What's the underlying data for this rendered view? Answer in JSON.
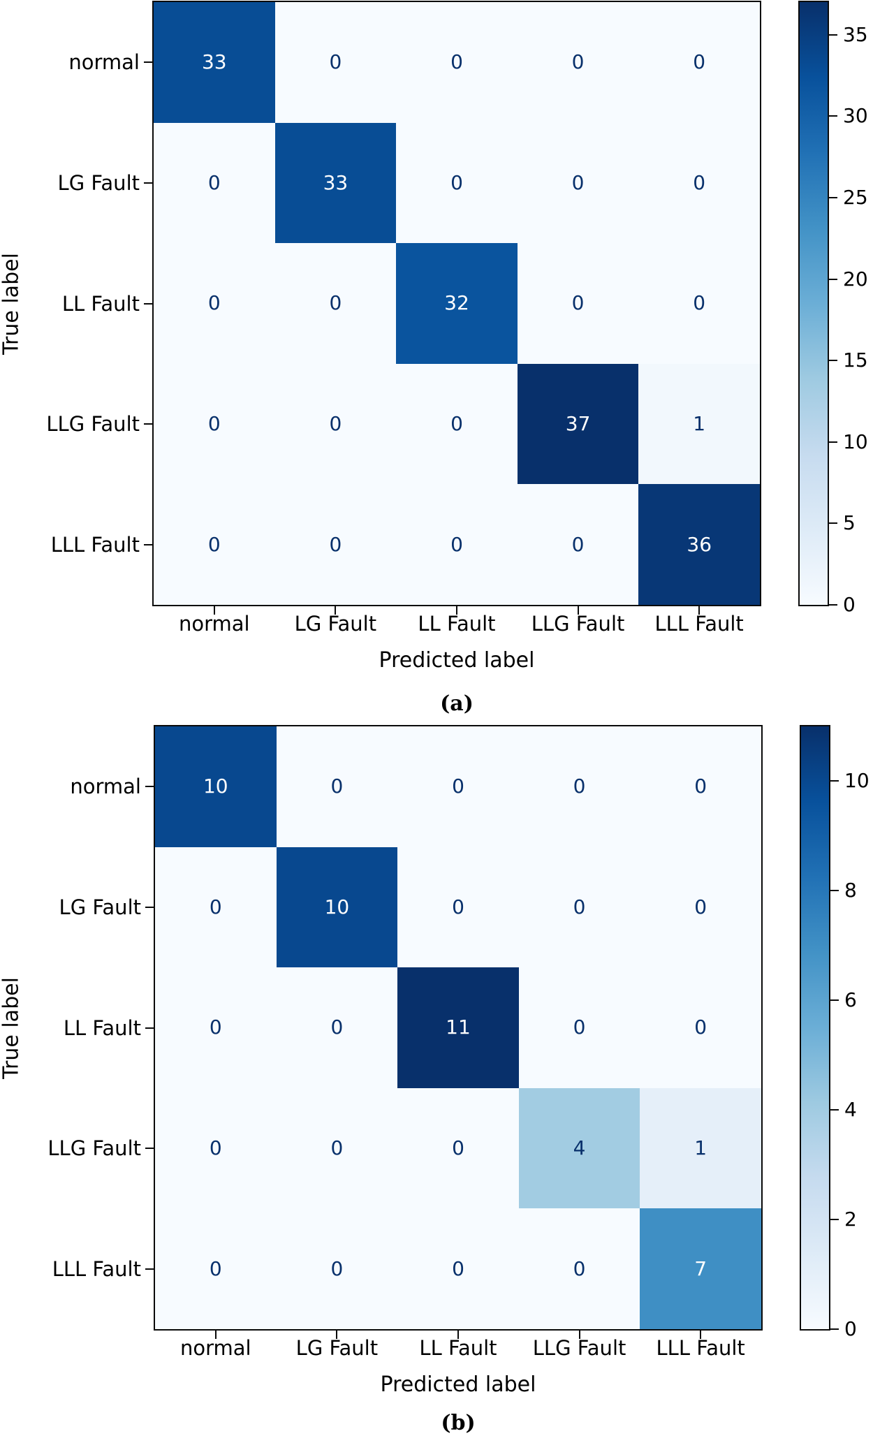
{
  "chart_data": [
    {
      "type": "heatmap",
      "caption": "(a)",
      "xlabel": "Predicted label",
      "ylabel": "True label",
      "categories": [
        "normal",
        "LG Fault",
        "LL Fault",
        "LLG Fault",
        "LLL Fault"
      ],
      "matrix": [
        [
          33,
          0,
          0,
          0,
          0
        ],
        [
          0,
          33,
          0,
          0,
          0
        ],
        [
          0,
          0,
          32,
          0,
          0
        ],
        [
          0,
          0,
          0,
          37,
          1
        ],
        [
          0,
          0,
          0,
          0,
          36
        ]
      ],
      "vmin": 0,
      "vmax": 37,
      "colorbar_ticks": [
        35,
        30,
        25,
        20,
        15,
        10,
        5,
        0
      ],
      "colormap": "Blues",
      "legend_position": "right",
      "grid": false
    },
    {
      "type": "heatmap",
      "caption": "(b)",
      "xlabel": "Predicted label",
      "ylabel": "True label",
      "categories": [
        "normal",
        "LG Fault",
        "LL Fault",
        "LLG Fault",
        "LLL Fault"
      ],
      "matrix": [
        [
          10,
          0,
          0,
          0,
          0
        ],
        [
          0,
          10,
          0,
          0,
          0
        ],
        [
          0,
          0,
          11,
          0,
          0
        ],
        [
          0,
          0,
          0,
          4,
          1
        ],
        [
          0,
          0,
          0,
          0,
          7
        ]
      ],
      "vmin": 0,
      "vmax": 11,
      "colorbar_ticks": [
        10,
        8,
        6,
        4,
        2,
        0
      ],
      "colormap": "Blues",
      "legend_position": "right",
      "grid": false
    }
  ],
  "colors": {
    "background": "#ffffff",
    "axis_line": "#0a0a0a",
    "label_text": "#000000",
    "cell_text_dark": "#08306b",
    "cell_text_light": "#ffffff",
    "cmap_stops": [
      {
        "t": 0.0,
        "hex": "#f7fbff"
      },
      {
        "t": 0.125,
        "hex": "#deebf7"
      },
      {
        "t": 0.25,
        "hex": "#c6dbef"
      },
      {
        "t": 0.375,
        "hex": "#9ecae1"
      },
      {
        "t": 0.5,
        "hex": "#6baed6"
      },
      {
        "t": 0.625,
        "hex": "#4292c6"
      },
      {
        "t": 0.75,
        "hex": "#2171b5"
      },
      {
        "t": 0.875,
        "hex": "#08519c"
      },
      {
        "t": 1.0,
        "hex": "#08306b"
      }
    ]
  }
}
